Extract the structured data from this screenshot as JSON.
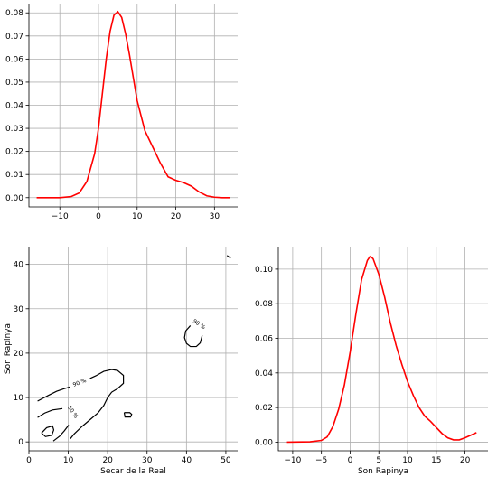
{
  "chart_data": [
    {
      "id": "top-marginal",
      "type": "line",
      "xlim": [
        -18,
        36
      ],
      "ylim": [
        -0.004,
        0.084
      ],
      "xticks": [
        -10,
        0,
        10,
        20,
        30
      ],
      "yticks": [
        0.0,
        0.01,
        0.02,
        0.03,
        0.04,
        0.05,
        0.06,
        0.07,
        0.08
      ],
      "xtick_labels": [
        "−10",
        "0",
        "10",
        "20",
        "30"
      ],
      "ytick_labels": [
        "0.00",
        "0.01",
        "0.02",
        "0.03",
        "0.04",
        "0.05",
        "0.06",
        "0.07",
        "0.08"
      ],
      "grid": true,
      "color": "#ff0000",
      "x": [
        -16,
        -10,
        -7,
        -5,
        -3,
        -1,
        0,
        1,
        2,
        3,
        4,
        5,
        6,
        7,
        8,
        9,
        10,
        12,
        14,
        16,
        18,
        20,
        22,
        24,
        26,
        28,
        30,
        32,
        34
      ],
      "y": [
        0,
        0,
        0.0005,
        0.002,
        0.007,
        0.019,
        0.03,
        0.045,
        0.06,
        0.072,
        0.079,
        0.0805,
        0.078,
        0.071,
        0.062,
        0.052,
        0.042,
        0.029,
        0.022,
        0.015,
        0.009,
        0.0075,
        0.0065,
        0.005,
        0.0025,
        0.0008,
        0.0002,
        0,
        0
      ]
    },
    {
      "id": "joint-contour",
      "type": "line",
      "xlabel": "Secar de la Real",
      "ylabel": "Son Rapinya",
      "xlim": [
        0,
        53
      ],
      "ylim": [
        -2,
        44
      ],
      "xticks": [
        0,
        10,
        20,
        30,
        40,
        50
      ],
      "yticks": [
        0,
        10,
        20,
        30,
        40
      ],
      "xtick_labels": [
        "0",
        "10",
        "20",
        "30",
        "40",
        "50"
      ],
      "ytick_labels": [
        "0",
        "10",
        "20",
        "30",
        "40"
      ],
      "grid": true,
      "color": "#000000",
      "contour_labels": [
        {
          "text": "90 %",
          "x": 13,
          "y": 13,
          "angle": -20
        },
        {
          "text": "90 %",
          "x": 43,
          "y": 26.2,
          "angle": 32
        },
        {
          "text": "50 %",
          "x": 10.8,
          "y": 6.5,
          "angle": 55
        }
      ],
      "series": [
        {
          "x": [
            2.2,
            5,
            7,
            9,
            10.5
          ],
          "y": [
            9.2,
            10.5,
            11.4,
            12.0,
            12.4
          ]
        },
        {
          "x": [
            15.5,
            17,
            19,
            21,
            22.5,
            24,
            24,
            22.5,
            21,
            20,
            19,
            17.5,
            15.5,
            13.5,
            11.5,
            10.5
          ],
          "y": [
            14.3,
            14.9,
            15.9,
            16.3,
            16.1,
            15.0,
            13.2,
            12.0,
            11.2,
            10.0,
            8.2,
            6.5,
            5.0,
            3.5,
            1.8,
            0.7
          ]
        },
        {
          "x": [
            2.2,
            4,
            6,
            8.5
          ],
          "y": [
            5.5,
            6.5,
            7.2,
            7.5
          ]
        },
        {
          "x": [
            3.2,
            4.5,
            6,
            6.3,
            5.8,
            4.2,
            3.2,
            3.2
          ],
          "y": [
            2.0,
            3.2,
            3.6,
            2.7,
            1.5,
            1.2,
            2.0,
            2.0
          ]
        },
        {
          "x": [
            6.2,
            7.8,
            9,
            10.1
          ],
          "y": [
            0.2,
            1.3,
            2.5,
            3.8
          ]
        },
        {
          "x": [
            24.2,
            25.6,
            26.1,
            25.8,
            24.4,
            24.2
          ],
          "y": [
            6.6,
            6.6,
            6.2,
            5.6,
            5.6,
            6.6
          ]
        },
        {
          "x": [
            41,
            39.8,
            39.5,
            40,
            41,
            42.5,
            43.5,
            44
          ],
          "y": [
            26.2,
            25.0,
            23.5,
            22.2,
            21.5,
            21.5,
            22.3,
            24.0
          ]
        },
        {
          "x": [
            50.3,
            51.2
          ],
          "y": [
            42.0,
            41.4
          ]
        }
      ]
    },
    {
      "id": "right-marginal",
      "type": "line",
      "xlabel": "Son Rapinya",
      "xlim": [
        -12.5,
        24
      ],
      "ylim": [
        -0.005,
        0.113
      ],
      "xticks": [
        -10,
        -5,
        0,
        5,
        10,
        15,
        20
      ],
      "yticks": [
        0.0,
        0.02,
        0.04,
        0.06,
        0.08,
        0.1
      ],
      "xtick_labels": [
        "−10",
        "−5",
        "0",
        "5",
        "10",
        "15",
        "20"
      ],
      "ytick_labels": [
        "0.00",
        "0.02",
        "0.04",
        "0.06",
        "0.08",
        "0.10"
      ],
      "grid": true,
      "color": "#ff0000",
      "x": [
        -11,
        -7,
        -5,
        -4,
        -3,
        -2,
        -1,
        0,
        1,
        2,
        3,
        3.5,
        4,
        5,
        6,
        7,
        8,
        9,
        10,
        11,
        12,
        13,
        14,
        15,
        16,
        17,
        18,
        19,
        20,
        21,
        22
      ],
      "y": [
        0,
        0.0002,
        0.001,
        0.003,
        0.009,
        0.019,
        0.033,
        0.052,
        0.074,
        0.094,
        0.105,
        0.1075,
        0.106,
        0.097,
        0.084,
        0.069,
        0.056,
        0.045,
        0.035,
        0.027,
        0.02,
        0.015,
        0.012,
        0.0085,
        0.005,
        0.0025,
        0.0013,
        0.0013,
        0.0025,
        0.004,
        0.0055
      ]
    }
  ]
}
